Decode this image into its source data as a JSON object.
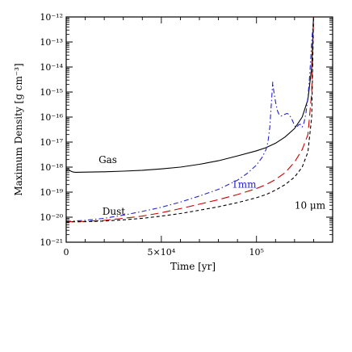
{
  "chart_data": {
    "type": "line",
    "title": "",
    "xlabel": "Time [yr]",
    "ylabel": "Maximum Density [g cm⁻³]",
    "x_scale": "linear",
    "y_scale": "log",
    "xlim": [
      0,
      140000
    ],
    "ylim": [
      1e-21,
      1e-12
    ],
    "x_ticks": [
      {
        "value": 0,
        "label": "0"
      },
      {
        "value": 50000,
        "label": "5×10⁴"
      },
      {
        "value": 100000,
        "label": "10⁵"
      }
    ],
    "y_ticks": [
      {
        "value": 1e-12,
        "label": "10⁻¹²"
      },
      {
        "value": 1e-13,
        "label": "10⁻¹³"
      },
      {
        "value": 1e-14,
        "label": "10⁻¹⁴"
      },
      {
        "value": 1e-15,
        "label": "10⁻¹⁵"
      },
      {
        "value": 1e-16,
        "label": "10⁻¹⁶"
      },
      {
        "value": 1e-17,
        "label": "10⁻¹⁷"
      },
      {
        "value": 1e-18,
        "label": "10⁻¹⁸"
      },
      {
        "value": 1e-19,
        "label": "10⁻¹⁹"
      },
      {
        "value": 1e-20,
        "label": "10⁻²⁰"
      },
      {
        "value": 1e-21,
        "label": "10⁻²¹"
      }
    ],
    "grid": false,
    "series": [
      {
        "name": "Gas",
        "color": "#000000",
        "dash": "solid",
        "x": [
          -5000,
          -3000,
          -1000,
          0,
          1000,
          2000,
          3000,
          4000,
          5000,
          10000,
          20000,
          30000,
          40000,
          50000,
          60000,
          70000,
          80000,
          90000,
          100000,
          105000,
          110000,
          115000,
          120000,
          124000,
          127000,
          129000,
          130000
        ],
        "y": [
          7.5e-19,
          7e-19,
          6.5e-19,
          7.2e-19,
          8.2e-19,
          7.2e-19,
          6.6e-19,
          6.3e-19,
          6.2e-19,
          6.3e-19,
          6.5e-19,
          6.9e-19,
          7.5e-19,
          8.5e-19,
          1e-18,
          1.3e-18,
          1.8e-18,
          2.8e-18,
          4.5e-18,
          6e-18,
          9e-18,
          1.6e-17,
          3.5e-17,
          1e-16,
          5e-16,
          1e-14,
          1e-12
        ]
      },
      {
        "name": "1mm",
        "color": "#2222cc",
        "dash": "dashdot",
        "x": [
          0,
          10000,
          20000,
          30000,
          40000,
          50000,
          60000,
          70000,
          80000,
          90000,
          95000,
          100000,
          103000,
          105000,
          106000,
          107000,
          108000,
          108500,
          109000,
          110000,
          111000,
          112000,
          113000,
          114000,
          115000,
          116000,
          117000,
          118000,
          119000,
          120000,
          121000,
          122000,
          123000,
          124000,
          125000,
          126000,
          127000,
          128000,
          129000,
          130000
        ],
        "y": [
          6.8e-21,
          7.5e-21,
          9e-21,
          1.2e-20,
          1.7e-20,
          2.5e-20,
          4e-20,
          7e-20,
          1.3e-19,
          3e-19,
          5.5e-19,
          1.2e-18,
          2.5e-18,
          5e-18,
          1e-17,
          4e-17,
          6e-16,
          2.5e-15,
          1.2e-15,
          4e-16,
          1.8e-16,
          1.2e-16,
          1.1e-16,
          1.2e-16,
          1.3e-16,
          1.4e-16,
          1.3e-16,
          1e-16,
          7e-17,
          4.5e-17,
          3.8e-17,
          4.8e-17,
          5.2e-17,
          4e-17,
          6e-17,
          1.5e-16,
          6e-16,
          5e-15,
          1e-13,
          1e-12
        ]
      },
      {
        "name": "",
        "color": "#cc0000",
        "dash": "longdash",
        "x": [
          0,
          10000,
          20000,
          30000,
          40000,
          50000,
          60000,
          70000,
          80000,
          90000,
          100000,
          105000,
          110000,
          115000,
          120000,
          124000,
          127000,
          129000,
          130000
        ],
        "y": [
          6.5e-21,
          6.8e-21,
          7.5e-21,
          9e-21,
          1.1e-20,
          1.5e-20,
          2.2e-20,
          3.3e-20,
          5e-20,
          8e-20,
          1.4e-19,
          2e-19,
          3.2e-19,
          6e-19,
          1.6e-18,
          5e-18,
          2e-17,
          1e-15,
          1e-12
        ]
      },
      {
        "name": "10 μm",
        "color": "#000000",
        "dash": "shortdash",
        "x": [
          0,
          10000,
          20000,
          30000,
          40000,
          50000,
          60000,
          70000,
          80000,
          90000,
          100000,
          105000,
          110000,
          115000,
          120000,
          124000,
          127000,
          129000,
          130000
        ],
        "y": [
          6.5e-21,
          6.6e-21,
          7e-21,
          7.8e-21,
          9e-21,
          1.1e-20,
          1.4e-20,
          1.9e-20,
          2.6e-20,
          3.8e-20,
          6e-20,
          8e-20,
          1.2e-19,
          2e-19,
          4e-19,
          1e-18,
          4e-18,
          1e-16,
          1e-12
        ]
      }
    ],
    "annotations": [
      {
        "text": "Gas",
        "x": 17000,
        "y": 1.45e-18,
        "color": "#000000"
      },
      {
        "text": "1mm",
        "x": 87000,
        "y": 1.5e-19,
        "color": "#2222cc"
      },
      {
        "text": "10 μm",
        "x": 120000,
        "y": 2.2e-20,
        "color": "#000000"
      },
      {
        "text": "Dust",
        "x": 19000,
        "y": 1.25e-20,
        "color": "#000000"
      }
    ]
  }
}
